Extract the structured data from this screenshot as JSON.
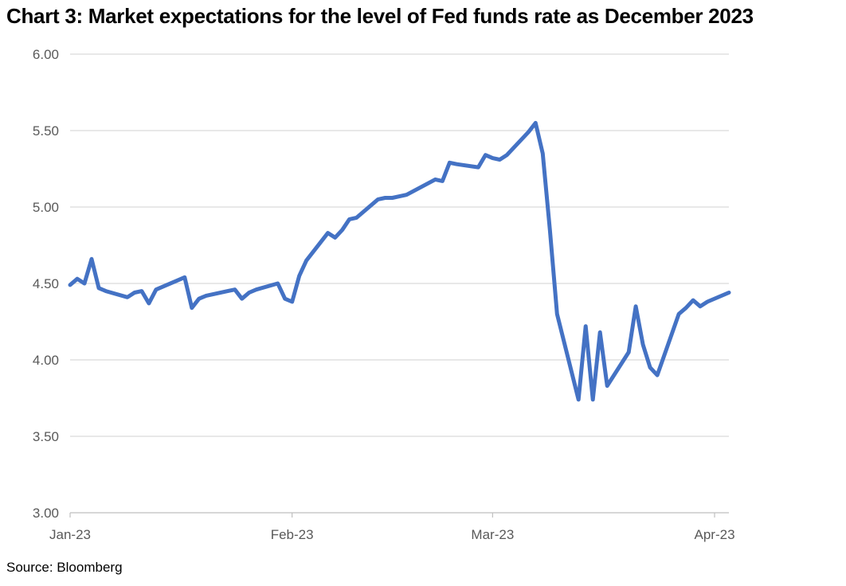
{
  "page": {
    "title": "Chart 3: Market expectations for the level of Fed funds rate as December 2023",
    "source": "Source: Bloomberg"
  },
  "chart_data": {
    "type": "line",
    "title": "Chart 3: Market expectations for the level of Fed funds rate as December 2023",
    "xlabel": "",
    "ylabel": "",
    "ylim": [
      3.0,
      6.0
    ],
    "y_ticks": [
      6.0,
      5.5,
      5.0,
      4.5,
      4.0,
      3.5,
      3.0
    ],
    "x_range": [
      "2023-01-01",
      "2023-04-03"
    ],
    "x_ticks": [
      {
        "date": "2023-01-01",
        "label": "Jan-23"
      },
      {
        "date": "2023-02-01",
        "label": "Feb-23"
      },
      {
        "date": "2023-03-01",
        "label": "Mar-23"
      },
      {
        "date": "2023-04-01",
        "label": "Apr-23"
      }
    ],
    "grid": true,
    "legend": "none",
    "colors": {
      "line": "#4472C4",
      "tick_label": "#595959",
      "gridline": "#D9D9D9",
      "axis": "#BFBFBF",
      "title_text": "#000000",
      "background": "#FFFFFF"
    },
    "series": [
      {
        "points": [
          [
            "2023-01-01",
            4.49
          ],
          [
            "2023-01-02",
            4.53
          ],
          [
            "2023-01-03",
            4.5
          ],
          [
            "2023-01-04",
            4.66
          ],
          [
            "2023-01-05",
            4.47
          ],
          [
            "2023-01-06",
            4.45
          ],
          [
            "2023-01-09",
            4.41
          ],
          [
            "2023-01-10",
            4.44
          ],
          [
            "2023-01-11",
            4.45
          ],
          [
            "2023-01-12",
            4.37
          ],
          [
            "2023-01-13",
            4.46
          ],
          [
            "2023-01-16",
            4.52
          ],
          [
            "2023-01-17",
            4.54
          ],
          [
            "2023-01-18",
            4.34
          ],
          [
            "2023-01-19",
            4.4
          ],
          [
            "2023-01-20",
            4.42
          ],
          [
            "2023-01-23",
            4.45
          ],
          [
            "2023-01-24",
            4.46
          ],
          [
            "2023-01-25",
            4.4
          ],
          [
            "2023-01-26",
            4.44
          ],
          [
            "2023-01-27",
            4.46
          ],
          [
            "2023-01-30",
            4.5
          ],
          [
            "2023-01-31",
            4.4
          ],
          [
            "2023-02-01",
            4.38
          ],
          [
            "2023-02-02",
            4.55
          ],
          [
            "2023-02-03",
            4.65
          ],
          [
            "2023-02-06",
            4.83
          ],
          [
            "2023-02-07",
            4.8
          ],
          [
            "2023-02-08",
            4.85
          ],
          [
            "2023-02-09",
            4.92
          ],
          [
            "2023-02-10",
            4.93
          ],
          [
            "2023-02-13",
            5.05
          ],
          [
            "2023-02-14",
            5.06
          ],
          [
            "2023-02-15",
            5.06
          ],
          [
            "2023-02-16",
            5.07
          ],
          [
            "2023-02-17",
            5.08
          ],
          [
            "2023-02-21",
            5.18
          ],
          [
            "2023-02-22",
            5.17
          ],
          [
            "2023-02-23",
            5.29
          ],
          [
            "2023-02-24",
            5.28
          ],
          [
            "2023-02-27",
            5.26
          ],
          [
            "2023-02-28",
            5.34
          ],
          [
            "2023-03-01",
            5.32
          ],
          [
            "2023-03-02",
            5.31
          ],
          [
            "2023-03-03",
            5.34
          ],
          [
            "2023-03-06",
            5.49
          ],
          [
            "2023-03-07",
            5.55
          ],
          [
            "2023-03-08",
            5.35
          ],
          [
            "2023-03-09",
            4.85
          ],
          [
            "2023-03-10",
            4.3
          ],
          [
            "2023-03-13",
            3.74
          ],
          [
            "2023-03-14",
            4.22
          ],
          [
            "2023-03-15",
            3.74
          ],
          [
            "2023-03-16",
            4.18
          ],
          [
            "2023-03-17",
            3.83
          ],
          [
            "2023-03-20",
            4.05
          ],
          [
            "2023-03-21",
            4.35
          ],
          [
            "2023-03-22",
            4.1
          ],
          [
            "2023-03-23",
            3.95
          ],
          [
            "2023-03-24",
            3.9
          ],
          [
            "2023-03-27",
            4.3
          ],
          [
            "2023-03-28",
            4.34
          ],
          [
            "2023-03-29",
            4.39
          ],
          [
            "2023-03-30",
            4.35
          ],
          [
            "2023-03-31",
            4.38
          ],
          [
            "2023-04-03",
            4.44
          ]
        ]
      }
    ]
  }
}
